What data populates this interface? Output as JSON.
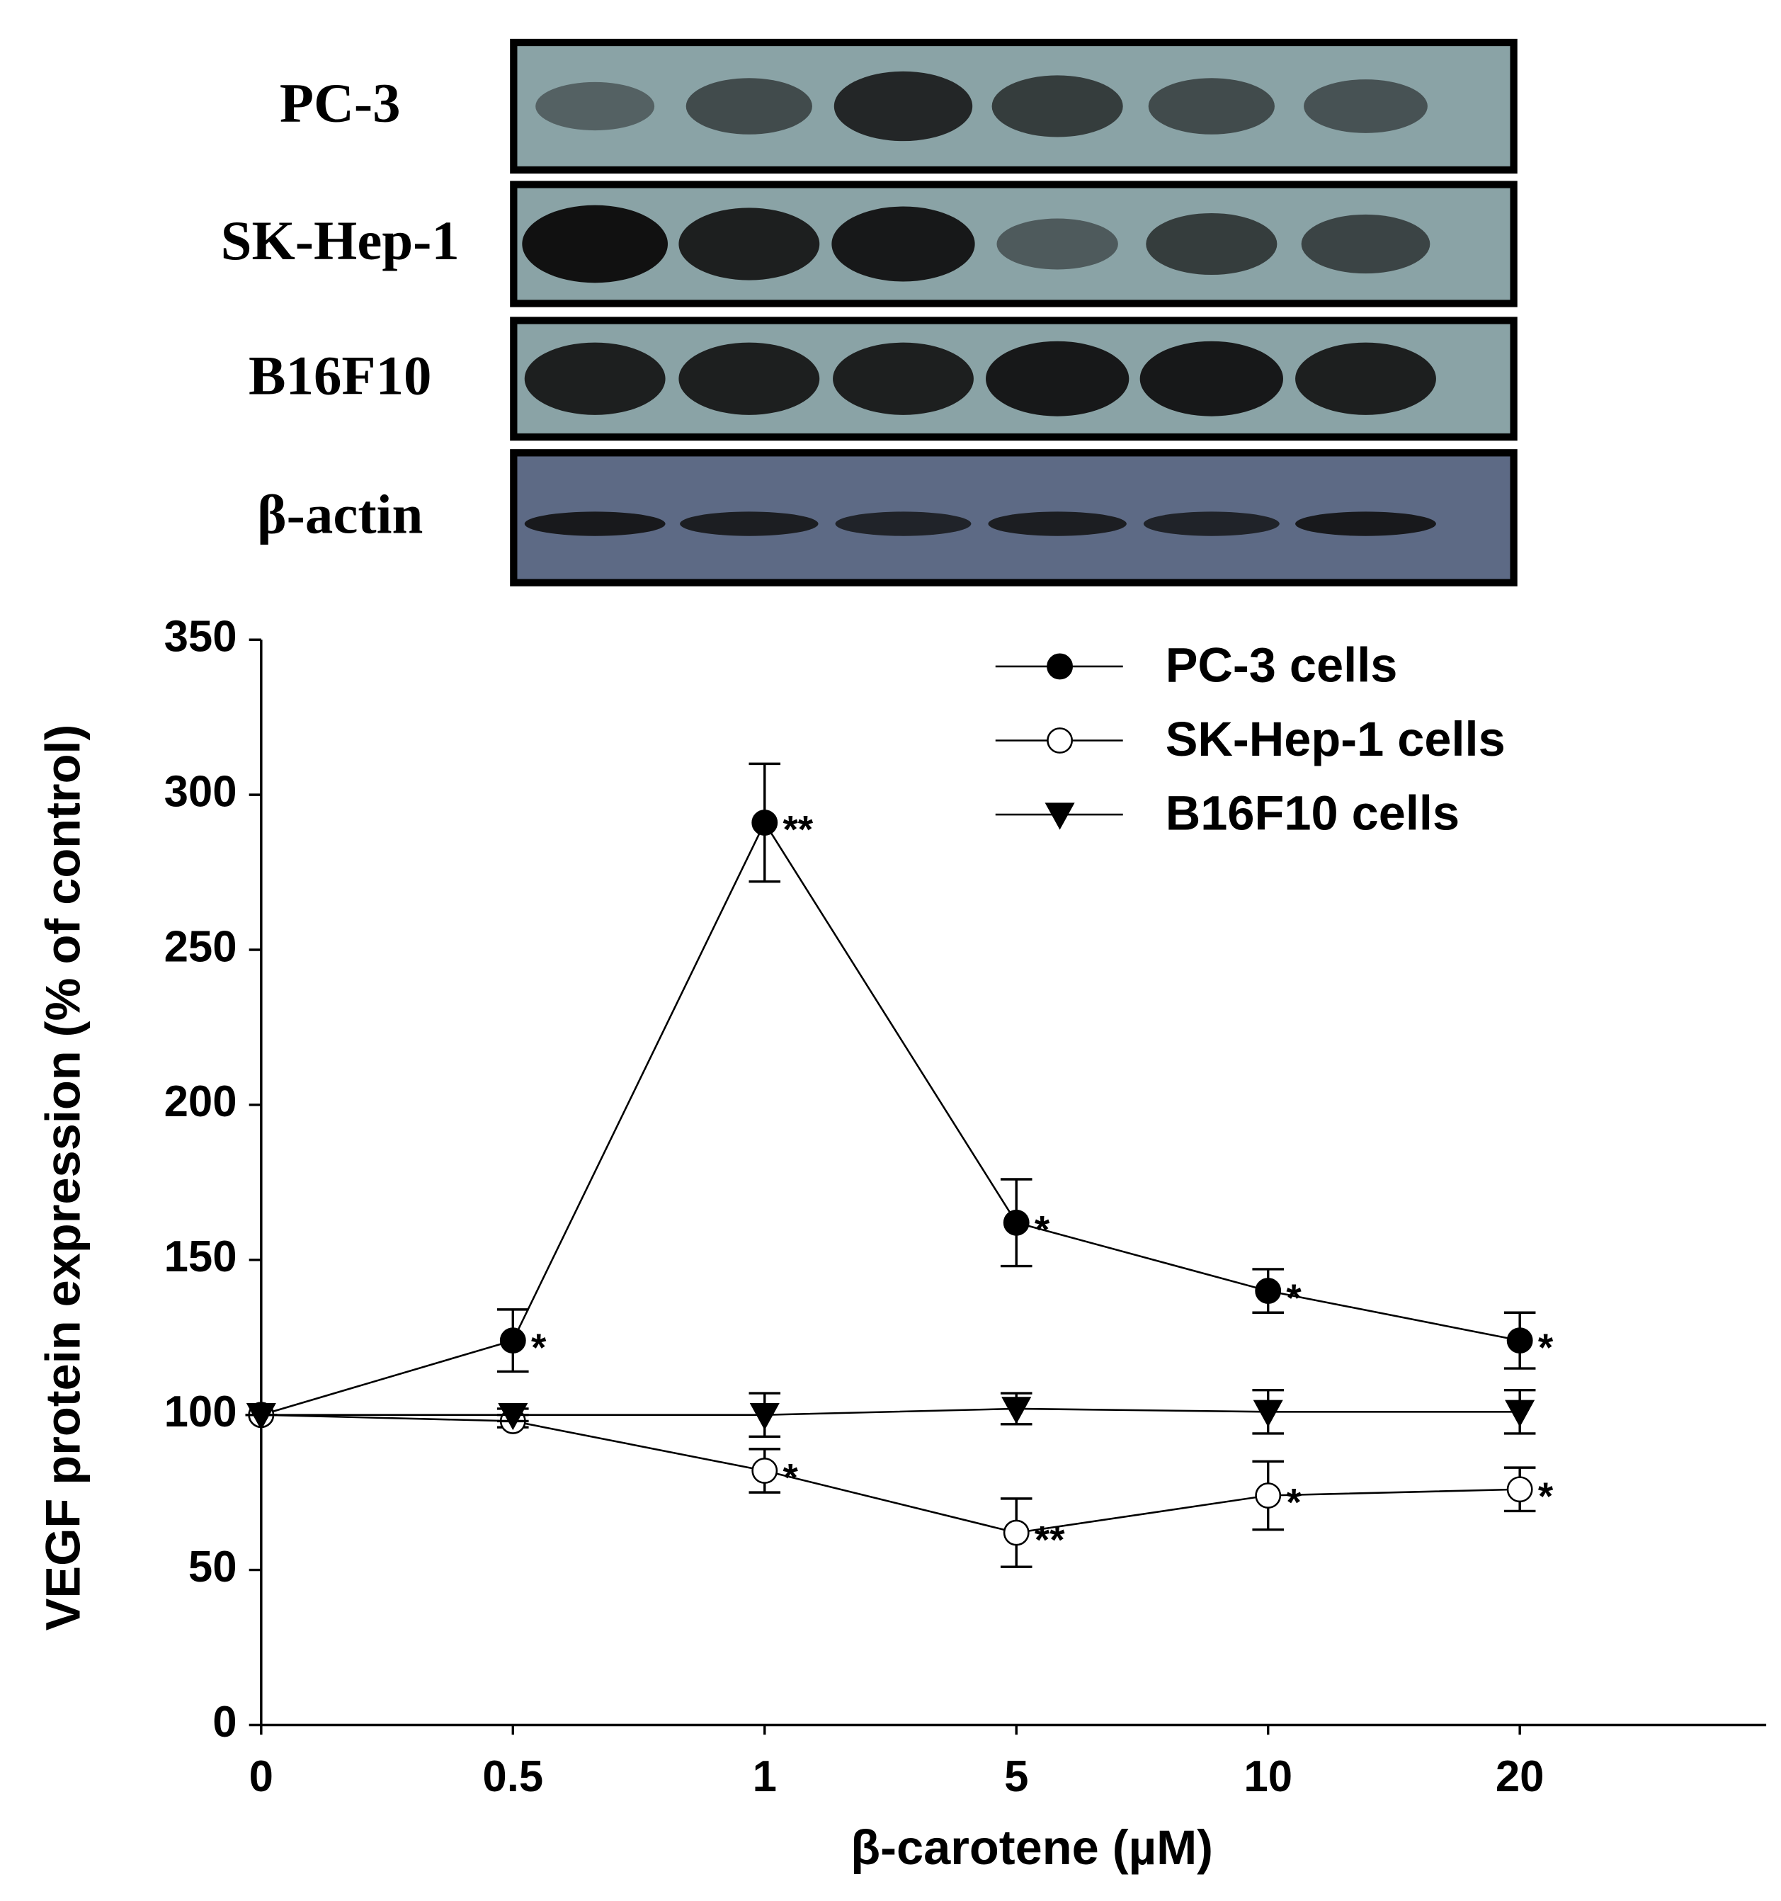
{
  "blot": {
    "rows": [
      "PC-3",
      "SK-Hep-1",
      "B16F10",
      "β-actin"
    ]
  },
  "chart_data": {
    "type": "line",
    "categories": [
      "0",
      "0.5",
      "1",
      "5",
      "10",
      "20"
    ],
    "x_label": "β-carotene (µM)",
    "y_label": "VEGF protein expression (% of control)",
    "ylim": [
      0,
      350
    ],
    "yticks": [
      0,
      50,
      100,
      150,
      200,
      250,
      300,
      350
    ],
    "legend": "upper right",
    "series": [
      {
        "name": "PC-3 cells",
        "color": "#000000",
        "marker": "circle",
        "marker_fill": "#000000",
        "values": [
          100,
          124,
          291,
          162,
          140,
          124
        ],
        "errors": [
          0,
          10,
          19,
          14,
          7,
          9
        ],
        "annotations": [
          null,
          "*",
          "**",
          "*",
          "*",
          "*"
        ]
      },
      {
        "name": "SK-Hep-1 cells",
        "color": "#000000",
        "marker": "circle",
        "marker_fill": "#ffffff",
        "values": [
          100,
          98,
          82,
          62,
          74,
          76
        ],
        "errors": [
          0,
          2,
          7,
          11,
          11,
          7
        ],
        "annotations": [
          null,
          null,
          "*",
          "**",
          "*",
          "*"
        ]
      },
      {
        "name": "B16F10 cells",
        "color": "#000000",
        "marker": "triangle-down",
        "marker_fill": "#000000",
        "values": [
          100,
          100,
          100,
          102,
          101,
          101
        ],
        "errors": [
          0,
          2,
          7,
          5,
          7,
          7
        ]
      }
    ]
  }
}
